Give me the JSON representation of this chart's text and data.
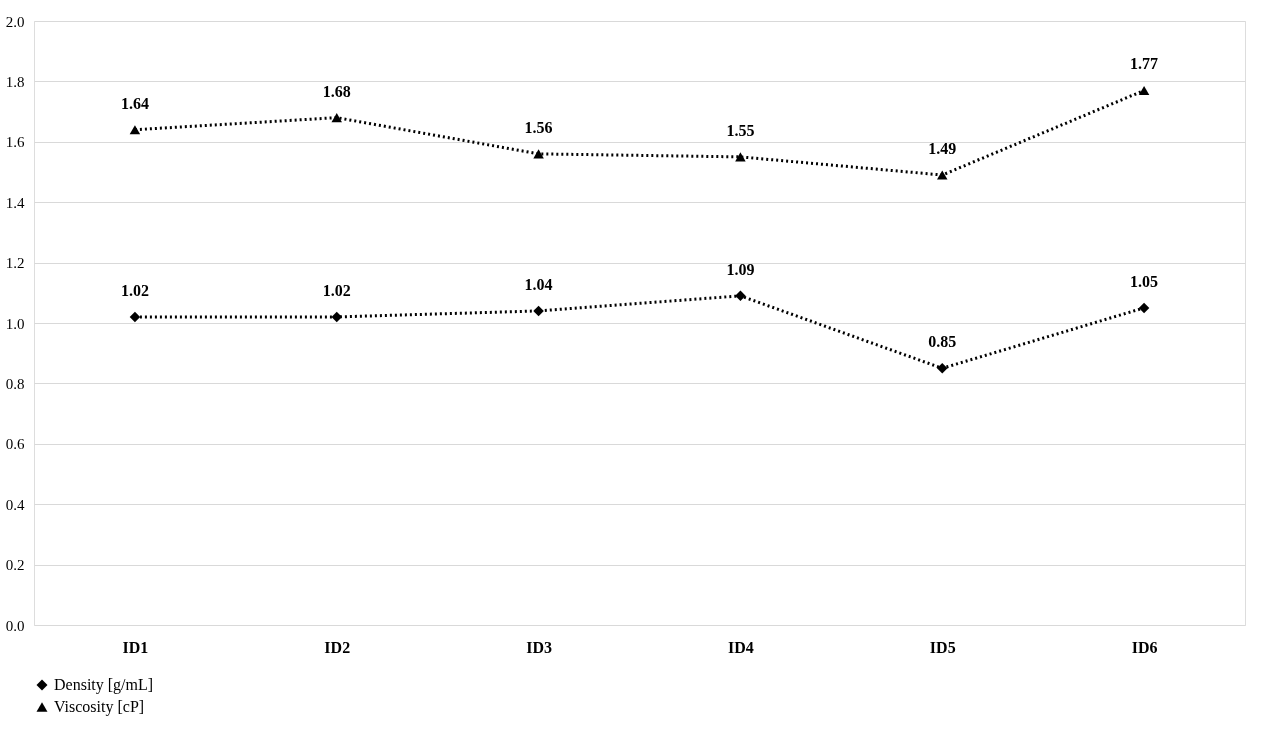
{
  "chart_data": {
    "type": "line",
    "categories": [
      "ID1",
      "ID2",
      "ID3",
      "ID4",
      "ID5",
      "ID6"
    ],
    "series": [
      {
        "name": "Density [g/mL]",
        "color": "#000000",
        "marker": "diamond",
        "values": [
          1.02,
          1.02,
          1.04,
          1.09,
          0.85,
          1.05
        ]
      },
      {
        "name": "Viscosity [cP]",
        "color": "#000000",
        "marker": "triangle",
        "values": [
          1.64,
          1.68,
          1.56,
          1.55,
          1.49,
          1.77
        ]
      }
    ],
    "ylim": [
      0,
      2.0
    ],
    "yticks": [
      {
        "value": 0,
        "label": "0.0"
      },
      {
        "value": 0.2,
        "label": "0.2"
      },
      {
        "value": 0.4,
        "label": "0.4"
      },
      {
        "value": 0.6,
        "label": "0.6"
      },
      {
        "value": 0.8,
        "label": "0.8"
      },
      {
        "value": 1.0,
        "label": "1.0"
      },
      {
        "value": 1.2,
        "label": "1.2"
      },
      {
        "value": 1.4,
        "label": "1.4"
      },
      {
        "value": 1.6,
        "label": "1.6"
      },
      {
        "value": 1.8,
        "label": "1.8"
      },
      {
        "value": 2.0,
        "label": "2.0"
      }
    ],
    "grid": "y",
    "legend": "bottom",
    "line_style": "dotted",
    "data_labels": true
  }
}
